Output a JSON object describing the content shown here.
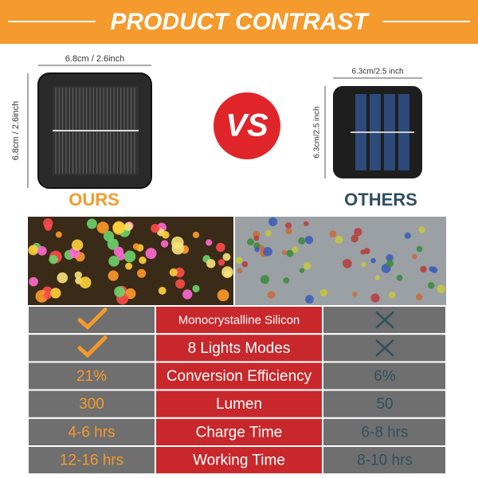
{
  "header": {
    "title": "PRODUCT CONTRAST"
  },
  "vs": "VS",
  "ours": {
    "label": "OURS",
    "width_label": "6.8cm / 2.6inch",
    "height_label": "6.8cm / 2.6inch"
  },
  "others": {
    "label": "OTHERS",
    "width_label": "6.3cm/2.5 inch",
    "height_label": "6.3cm/2.5 inch"
  },
  "table": {
    "rows": [
      {
        "feature": "Monocrystalline Silicon"
      },
      {
        "feature": "8 Lights Modes"
      },
      {
        "ours": "21%",
        "feature": "Conversion Efficiency",
        "others": "6%"
      },
      {
        "ours": "300",
        "feature": "Lumen",
        "others": "50"
      },
      {
        "ours": "4-6 hrs",
        "feature": "Charge Time",
        "others": "6-8 hrs"
      },
      {
        "ours": "12-16 hrs",
        "feature": "Working Time",
        "others": "8-10 hrs"
      }
    ]
  }
}
